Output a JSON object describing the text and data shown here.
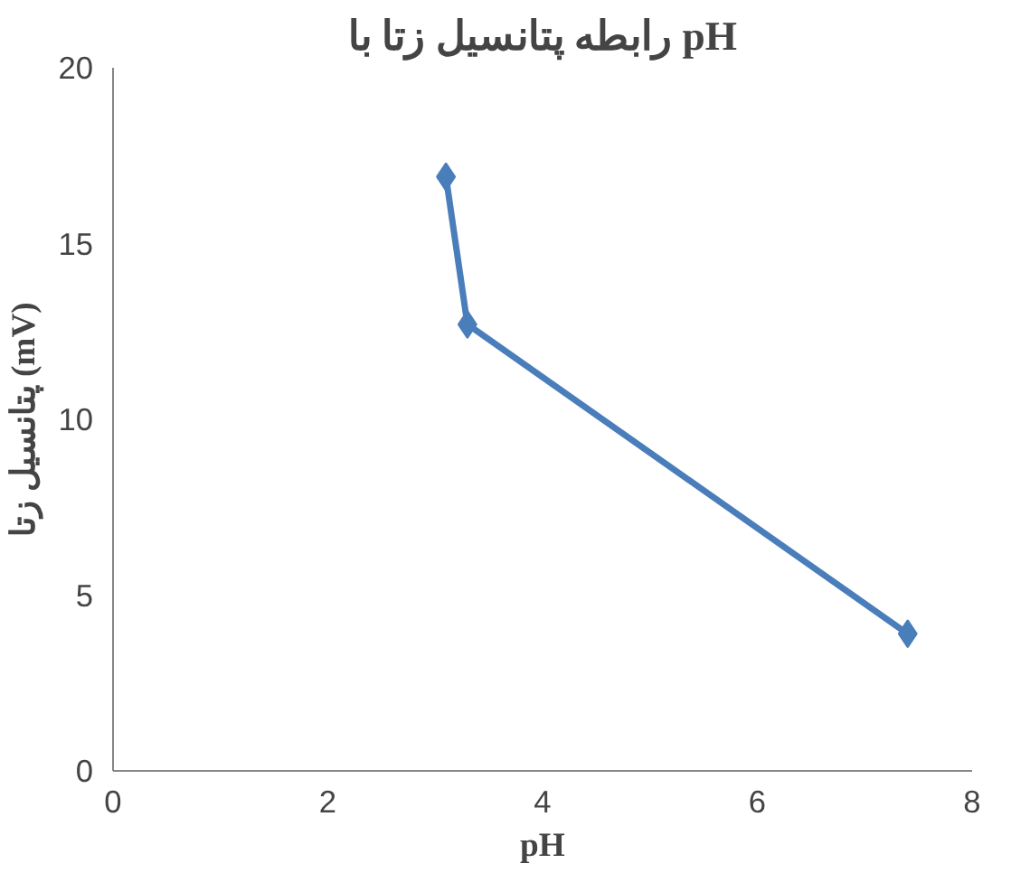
{
  "chart_data": {
    "type": "line",
    "title": "رابطه پتانسیل زتا با pH",
    "xlabel": "pH",
    "ylabel": "پتانسیل زتا (mV)",
    "x": [
      3.1,
      3.3,
      7.4
    ],
    "series": [
      {
        "color": "#4a7ebb",
        "values": [
          16.9,
          12.7,
          3.9
        ]
      }
    ],
    "xlim": [
      0,
      8
    ],
    "xticks": [
      0,
      2,
      4,
      6,
      8
    ],
    "ylim": [
      0,
      20
    ],
    "yticks": [
      0,
      5,
      10,
      15,
      20
    ],
    "grid": false,
    "marker": "diamond",
    "line_style": "solid"
  }
}
